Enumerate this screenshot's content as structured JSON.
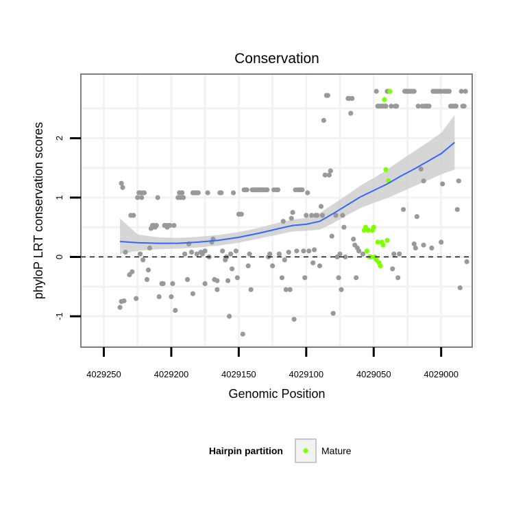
{
  "chart_data": {
    "type": "scatter",
    "title": "Conservation",
    "xlabel": "Genomic Position",
    "ylabel": "phyloP LRT conservation scores",
    "x_reversed": true,
    "xlim": [
      4029267,
      4028977
    ],
    "ylim": [
      -1.52,
      3.08
    ],
    "x_ticks": [
      4029250,
      4029200,
      4029150,
      4029100,
      4029050,
      4029000
    ],
    "x_tick_labels": [
      "4029250",
      "4029200",
      "4029150",
      "4029100",
      "4029050",
      "4029000"
    ],
    "y_ticks": [
      -1,
      0,
      1,
      2
    ],
    "y_tick_labels": [
      "-1",
      "0",
      "1",
      "2"
    ],
    "grid": true,
    "reference_line": {
      "y": 0,
      "style": "dashed"
    },
    "colors": {
      "other": "#999999",
      "mature": "#7fff00",
      "smooth": "#3366ff",
      "band": "#c8c8c8",
      "grid": "#f2f2f2",
      "border": "#7f7f7f"
    },
    "series": [
      {
        "category": "other",
        "points": [
          [
            4029238,
            -0.85
          ],
          [
            4029237,
            -0.75
          ],
          [
            4029235,
            -0.74
          ],
          [
            4029237,
            1.24
          ],
          [
            4029236,
            1.17
          ],
          [
            4029234,
            0.08
          ],
          [
            4029231,
            -0.3
          ],
          [
            4029229,
            -0.25
          ],
          [
            4029230,
            0.7
          ],
          [
            4029228,
            0.7
          ],
          [
            4029226,
            -0.7
          ],
          [
            4029225,
            1.0
          ],
          [
            4029224,
            1.08
          ],
          [
            4029223,
            1.08
          ],
          [
            4029222,
            1.0
          ],
          [
            4029221,
            1.08
          ],
          [
            4029220,
            1.08
          ],
          [
            4029223,
            0.05
          ],
          [
            4029221,
            -0.05
          ],
          [
            4029218,
            -0.38
          ],
          [
            4029217,
            -0.22
          ],
          [
            4029216,
            0.15
          ],
          [
            4029215,
            0.48
          ],
          [
            4029214,
            0.53
          ],
          [
            4029213,
            0.53
          ],
          [
            4029212,
            0.5
          ],
          [
            4029211,
            0.53
          ],
          [
            4029210,
            1.0
          ],
          [
            4029209,
            -0.67
          ],
          [
            4029207,
            -0.45
          ],
          [
            4029206,
            -0.45
          ],
          [
            4029205,
            0.53
          ],
          [
            4029204,
            0.53
          ],
          [
            4029203,
            0.5
          ],
          [
            4029202,
            0.53
          ],
          [
            4029201,
            0.53
          ],
          [
            4029200,
            -0.67
          ],
          [
            4029199,
            -0.45
          ],
          [
            4029198,
            0.53
          ],
          [
            4029197,
            -0.9
          ],
          [
            4029195,
            1.0
          ],
          [
            4029194,
            1.08
          ],
          [
            4029193,
            1.0
          ],
          [
            4029192,
            1.08
          ],
          [
            4029191,
            1.0
          ],
          [
            4029190,
            0.05
          ],
          [
            4029188,
            -0.38
          ],
          [
            4029187,
            0.22
          ],
          [
            4029185,
            0.08
          ],
          [
            4029184,
            1.08
          ],
          [
            4029183,
            1.08
          ],
          [
            4029182,
            1.08
          ],
          [
            4029181,
            1.08
          ],
          [
            4029180,
            1.08
          ],
          [
            4029184,
            -0.62
          ],
          [
            4029181,
            0.05
          ],
          [
            4029178,
            0.08
          ],
          [
            4029177,
            0.05
          ],
          [
            4029175,
            0.1
          ],
          [
            4029175,
            -0.45
          ],
          [
            4029173,
            1.08
          ],
          [
            4029172,
            0.0
          ],
          [
            4029170,
            0.25
          ],
          [
            4029169,
            0.3
          ],
          [
            4029168,
            -0.38
          ],
          [
            4029166,
            -0.55
          ],
          [
            4029166,
            -0.4
          ],
          [
            4029164,
            1.08
          ],
          [
            4029163,
            1.08
          ],
          [
            4029162,
            0.1
          ],
          [
            4029160,
            -0.05
          ],
          [
            4029159,
            0.0
          ],
          [
            4029158,
            -0.4
          ],
          [
            4029157,
            -1.0
          ],
          [
            4029156,
            0.05
          ],
          [
            4029155,
            -0.2
          ],
          [
            4029154,
            1.08
          ],
          [
            4029152,
            0.1
          ],
          [
            4029151,
            -0.35
          ],
          [
            4029150,
            0.72
          ],
          [
            4029149,
            0.72
          ],
          [
            4029148,
            0.72
          ],
          [
            4029147,
            -1.3
          ],
          [
            4029146,
            1.13
          ],
          [
            4029145,
            1.13
          ],
          [
            4029144,
            1.13
          ],
          [
            4029143,
            -0.15
          ],
          [
            4029142,
            0.05
          ],
          [
            4029141,
            -0.55
          ],
          [
            4029140,
            1.13
          ],
          [
            4029139,
            1.13
          ],
          [
            4029138,
            1.13
          ],
          [
            4029137,
            1.13
          ],
          [
            4029136,
            1.13
          ],
          [
            4029135,
            1.13
          ],
          [
            4029134,
            1.13
          ],
          [
            4029133,
            1.13
          ],
          [
            4029132,
            1.13
          ],
          [
            4029131,
            1.13
          ],
          [
            4029130,
            1.13
          ],
          [
            4029129,
            1.13
          ],
          [
            4029128,
            0.0
          ],
          [
            4029127,
            0.05
          ],
          [
            4029125,
            -0.15
          ],
          [
            4029124,
            1.13
          ],
          [
            4029122,
            1.13
          ],
          [
            4029121,
            1.13
          ],
          [
            4029120,
            0.05
          ],
          [
            4029118,
            -0.35
          ],
          [
            4029117,
            0.6
          ],
          [
            4029116,
            -0.05
          ],
          [
            4029115,
            -0.55
          ],
          [
            4029113,
            0.08
          ],
          [
            4029112,
            -0.55
          ],
          [
            4029111,
            0.65
          ],
          [
            4029110,
            0.75
          ],
          [
            4029109,
            -1.05
          ],
          [
            4029108,
            1.13
          ],
          [
            4029107,
            0.1
          ],
          [
            4029106,
            1.13
          ],
          [
            4029105,
            1.13
          ],
          [
            4029104,
            1.13
          ],
          [
            4029103,
            1.13
          ],
          [
            4029102,
            0.1
          ],
          [
            4029101,
            -0.35
          ],
          [
            4029100,
            0.7
          ],
          [
            4029099,
            1.08
          ],
          [
            4029098,
            0.1
          ],
          [
            4029096,
            0.7
          ],
          [
            4029095,
            -0.1
          ],
          [
            4029094,
            0.12
          ],
          [
            4029093,
            0.7
          ],
          [
            4029092,
            0.7
          ],
          [
            4029090,
            -0.15
          ],
          [
            4029089,
            0.85
          ],
          [
            4029088,
            0.7
          ],
          [
            4029087,
            2.3
          ],
          [
            4029086,
            1.38
          ],
          [
            4029085,
            2.72
          ],
          [
            4029084,
            2.72
          ],
          [
            4029083,
            1.38
          ],
          [
            4029082,
            1.45
          ],
          [
            4029081,
            0.35
          ],
          [
            4029080,
            -0.95
          ],
          [
            4029078,
            0.7
          ],
          [
            4029077,
            0.0
          ],
          [
            4029076,
            -0.35
          ],
          [
            4029075,
            0.05
          ],
          [
            4029074,
            -0.55
          ],
          [
            4029073,
            0.7
          ],
          [
            4029072,
            0.5
          ],
          [
            4029071,
            0.0
          ],
          [
            4029069,
            2.67
          ],
          [
            4029068,
            2.67
          ],
          [
            4029067,
            2.42
          ],
          [
            4029066,
            2.67
          ],
          [
            4029065,
            0.3
          ],
          [
            4029064,
            0.2
          ],
          [
            4029063,
            -0.35
          ],
          [
            4029062,
            0.15
          ],
          [
            4029061,
            0.1
          ],
          [
            4029058,
            0.05
          ],
          [
            4029048,
            2.79
          ],
          [
            4029047,
            2.54
          ],
          [
            4029046,
            2.54
          ],
          [
            4029045,
            2.54
          ],
          [
            4029044,
            2.54
          ],
          [
            4029043,
            2.54
          ],
          [
            4029042,
            2.54
          ],
          [
            4029041,
            2.54
          ],
          [
            4029040,
            2.79
          ],
          [
            4029039,
            2.79
          ],
          [
            4029038,
            2.79
          ],
          [
            4029037,
            2.54
          ],
          [
            4029036,
            -0.2
          ],
          [
            4029035,
            0.05
          ],
          [
            4029034,
            2.54
          ],
          [
            4029033,
            2.54
          ],
          [
            4029032,
            -0.35
          ],
          [
            4029031,
            0.05
          ],
          [
            4029028,
            0.8
          ],
          [
            4029027,
            2.79
          ],
          [
            4029026,
            2.79
          ],
          [
            4029025,
            2.79
          ],
          [
            4029024,
            2.79
          ],
          [
            4029023,
            2.79
          ],
          [
            4029022,
            2.79
          ],
          [
            4029021,
            2.79
          ],
          [
            4029020,
            2.79
          ],
          [
            4029020,
            0.22
          ],
          [
            4029019,
            0.15
          ],
          [
            4029018,
            0.68
          ],
          [
            4029017,
            2.54
          ],
          [
            4029015,
            1.48
          ],
          [
            4029014,
            2.54
          ],
          [
            4029013,
            1.28
          ],
          [
            4029013,
            0.2
          ],
          [
            4029012,
            2.54
          ],
          [
            4029011,
            2.54
          ],
          [
            4029010,
            2.54
          ],
          [
            4029009,
            2.54
          ],
          [
            4029007,
            0.15
          ],
          [
            4029006,
            2.79
          ],
          [
            4029005,
            2.79
          ],
          [
            4029004,
            2.79
          ],
          [
            4029003,
            2.79
          ],
          [
            4029002,
            2.79
          ],
          [
            4029001,
            2.79
          ],
          [
            4029000,
            2.79
          ],
          [
            4029000,
            0.25
          ],
          [
            4028999,
            1.23
          ],
          [
            4028998,
            2.79
          ],
          [
            4028997,
            2.79
          ],
          [
            4028996,
            2.79
          ],
          [
            4028995,
            2.79
          ],
          [
            4028994,
            2.79
          ],
          [
            4028993,
            2.54
          ],
          [
            4028992,
            2.54
          ],
          [
            4028991,
            2.54
          ],
          [
            4028990,
            2.54
          ],
          [
            4028989,
            2.54
          ],
          [
            4028988,
            0.8
          ],
          [
            4028987,
            1.28
          ],
          [
            4028986,
            -0.52
          ],
          [
            4028985,
            2.79
          ],
          [
            4028984,
            2.54
          ],
          [
            4028983,
            2.54
          ],
          [
            4028982,
            2.79
          ],
          [
            4028981,
            -0.08
          ]
        ]
      },
      {
        "name": "Mature",
        "category": "mature",
        "points": [
          [
            4029057,
            0.45
          ],
          [
            4029056,
            0.5
          ],
          [
            4029055,
            0.1
          ],
          [
            4029054,
            0.45
          ],
          [
            4029053,
            0.0
          ],
          [
            4029052,
            0.0
          ],
          [
            4029051,
            0.45
          ],
          [
            4029050,
            0.5
          ],
          [
            4029049,
            0.0
          ],
          [
            4029048,
            -0.05
          ],
          [
            4029047,
            0.25
          ],
          [
            4029046,
            -0.1
          ],
          [
            4029045,
            -0.15
          ],
          [
            4029044,
            0.25
          ],
          [
            4029043,
            0.2
          ],
          [
            4029042,
            2.65
          ],
          [
            4029041,
            1.47
          ],
          [
            4029040,
            0.28
          ],
          [
            4029039,
            1.28
          ],
          [
            4029038,
            2.79
          ]
        ]
      }
    ],
    "smooth": {
      "method": "loess",
      "x": [
        4029238,
        4029225,
        4029210,
        4029195,
        4029180,
        4029165,
        4029150,
        4029135,
        4029120,
        4029110,
        4029100,
        4029090,
        4029080,
        4029070,
        4029060,
        4029050,
        4029040,
        4029030,
        4029020,
        4029010,
        4029000,
        4028990
      ],
      "y": [
        0.26,
        0.24,
        0.23,
        0.23,
        0.25,
        0.28,
        0.33,
        0.4,
        0.48,
        0.53,
        0.55,
        0.6,
        0.73,
        0.87,
        1.01,
        1.12,
        1.23,
        1.36,
        1.48,
        1.61,
        1.74,
        1.93
      ],
      "lower": [
        0.05,
        0.1,
        0.13,
        0.14,
        0.16,
        0.19,
        0.24,
        0.31,
        0.38,
        0.43,
        0.44,
        0.46,
        0.57,
        0.7,
        0.82,
        0.91,
        0.99,
        1.09,
        1.19,
        1.29,
        1.39,
        1.47
      ],
      "upper": [
        0.65,
        0.38,
        0.33,
        0.32,
        0.34,
        0.37,
        0.42,
        0.49,
        0.58,
        0.63,
        0.66,
        0.74,
        0.89,
        1.04,
        1.2,
        1.33,
        1.47,
        1.63,
        1.78,
        1.93,
        2.09,
        2.39
      ]
    },
    "legend": {
      "title": "Hairpin partition",
      "placement": "bottom",
      "items": [
        {
          "label": "Mature",
          "color": "#7fff00"
        }
      ]
    }
  }
}
